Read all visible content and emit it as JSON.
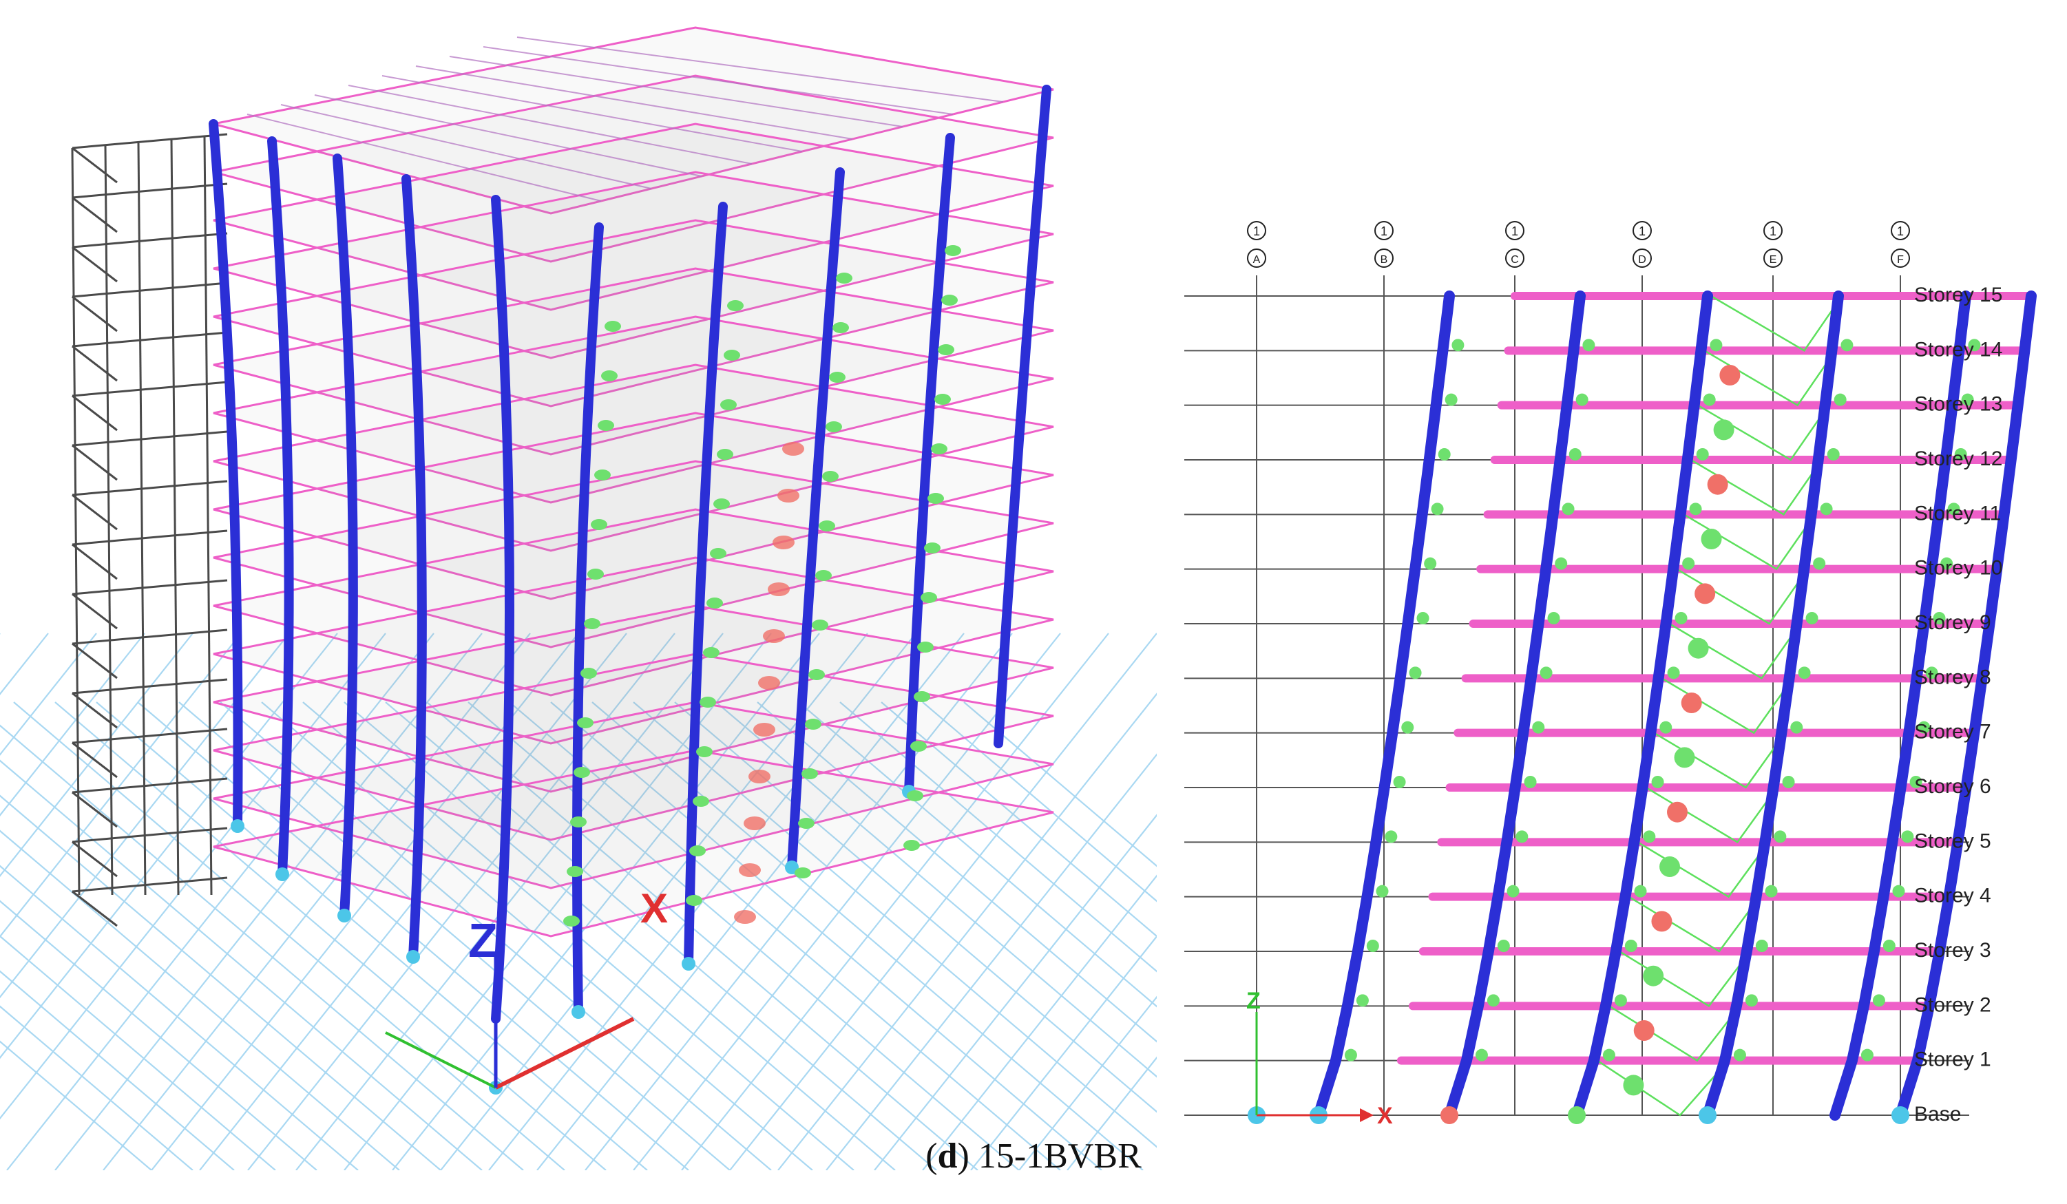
{
  "caption": {
    "letter": "d",
    "text": "15-1BVBR"
  },
  "axis": {
    "z": "Z",
    "x": "X"
  },
  "grid_lines": [
    "A",
    "B",
    "C",
    "D",
    "E",
    "F"
  ],
  "grid_line_prefix": "1",
  "storeys": [
    "Base",
    "Storey 1",
    "Storey 2",
    "Storey 3",
    "Storey 4",
    "Storey 5",
    "Storey 6",
    "Storey 7",
    "Storey 8",
    "Storey 9",
    "Storey 10",
    "Storey 11",
    "Storey 12",
    "Storey 13",
    "Storey 14",
    "Storey 15"
  ],
  "colors": {
    "column": "#2b2fd6",
    "beam": "#ee5fc8",
    "brace": "#5de05d",
    "hinge_green": "#6ee06e",
    "hinge_red": "#f07068",
    "ground_grid": "#a9d8f2",
    "undeformed": "#555555"
  }
}
